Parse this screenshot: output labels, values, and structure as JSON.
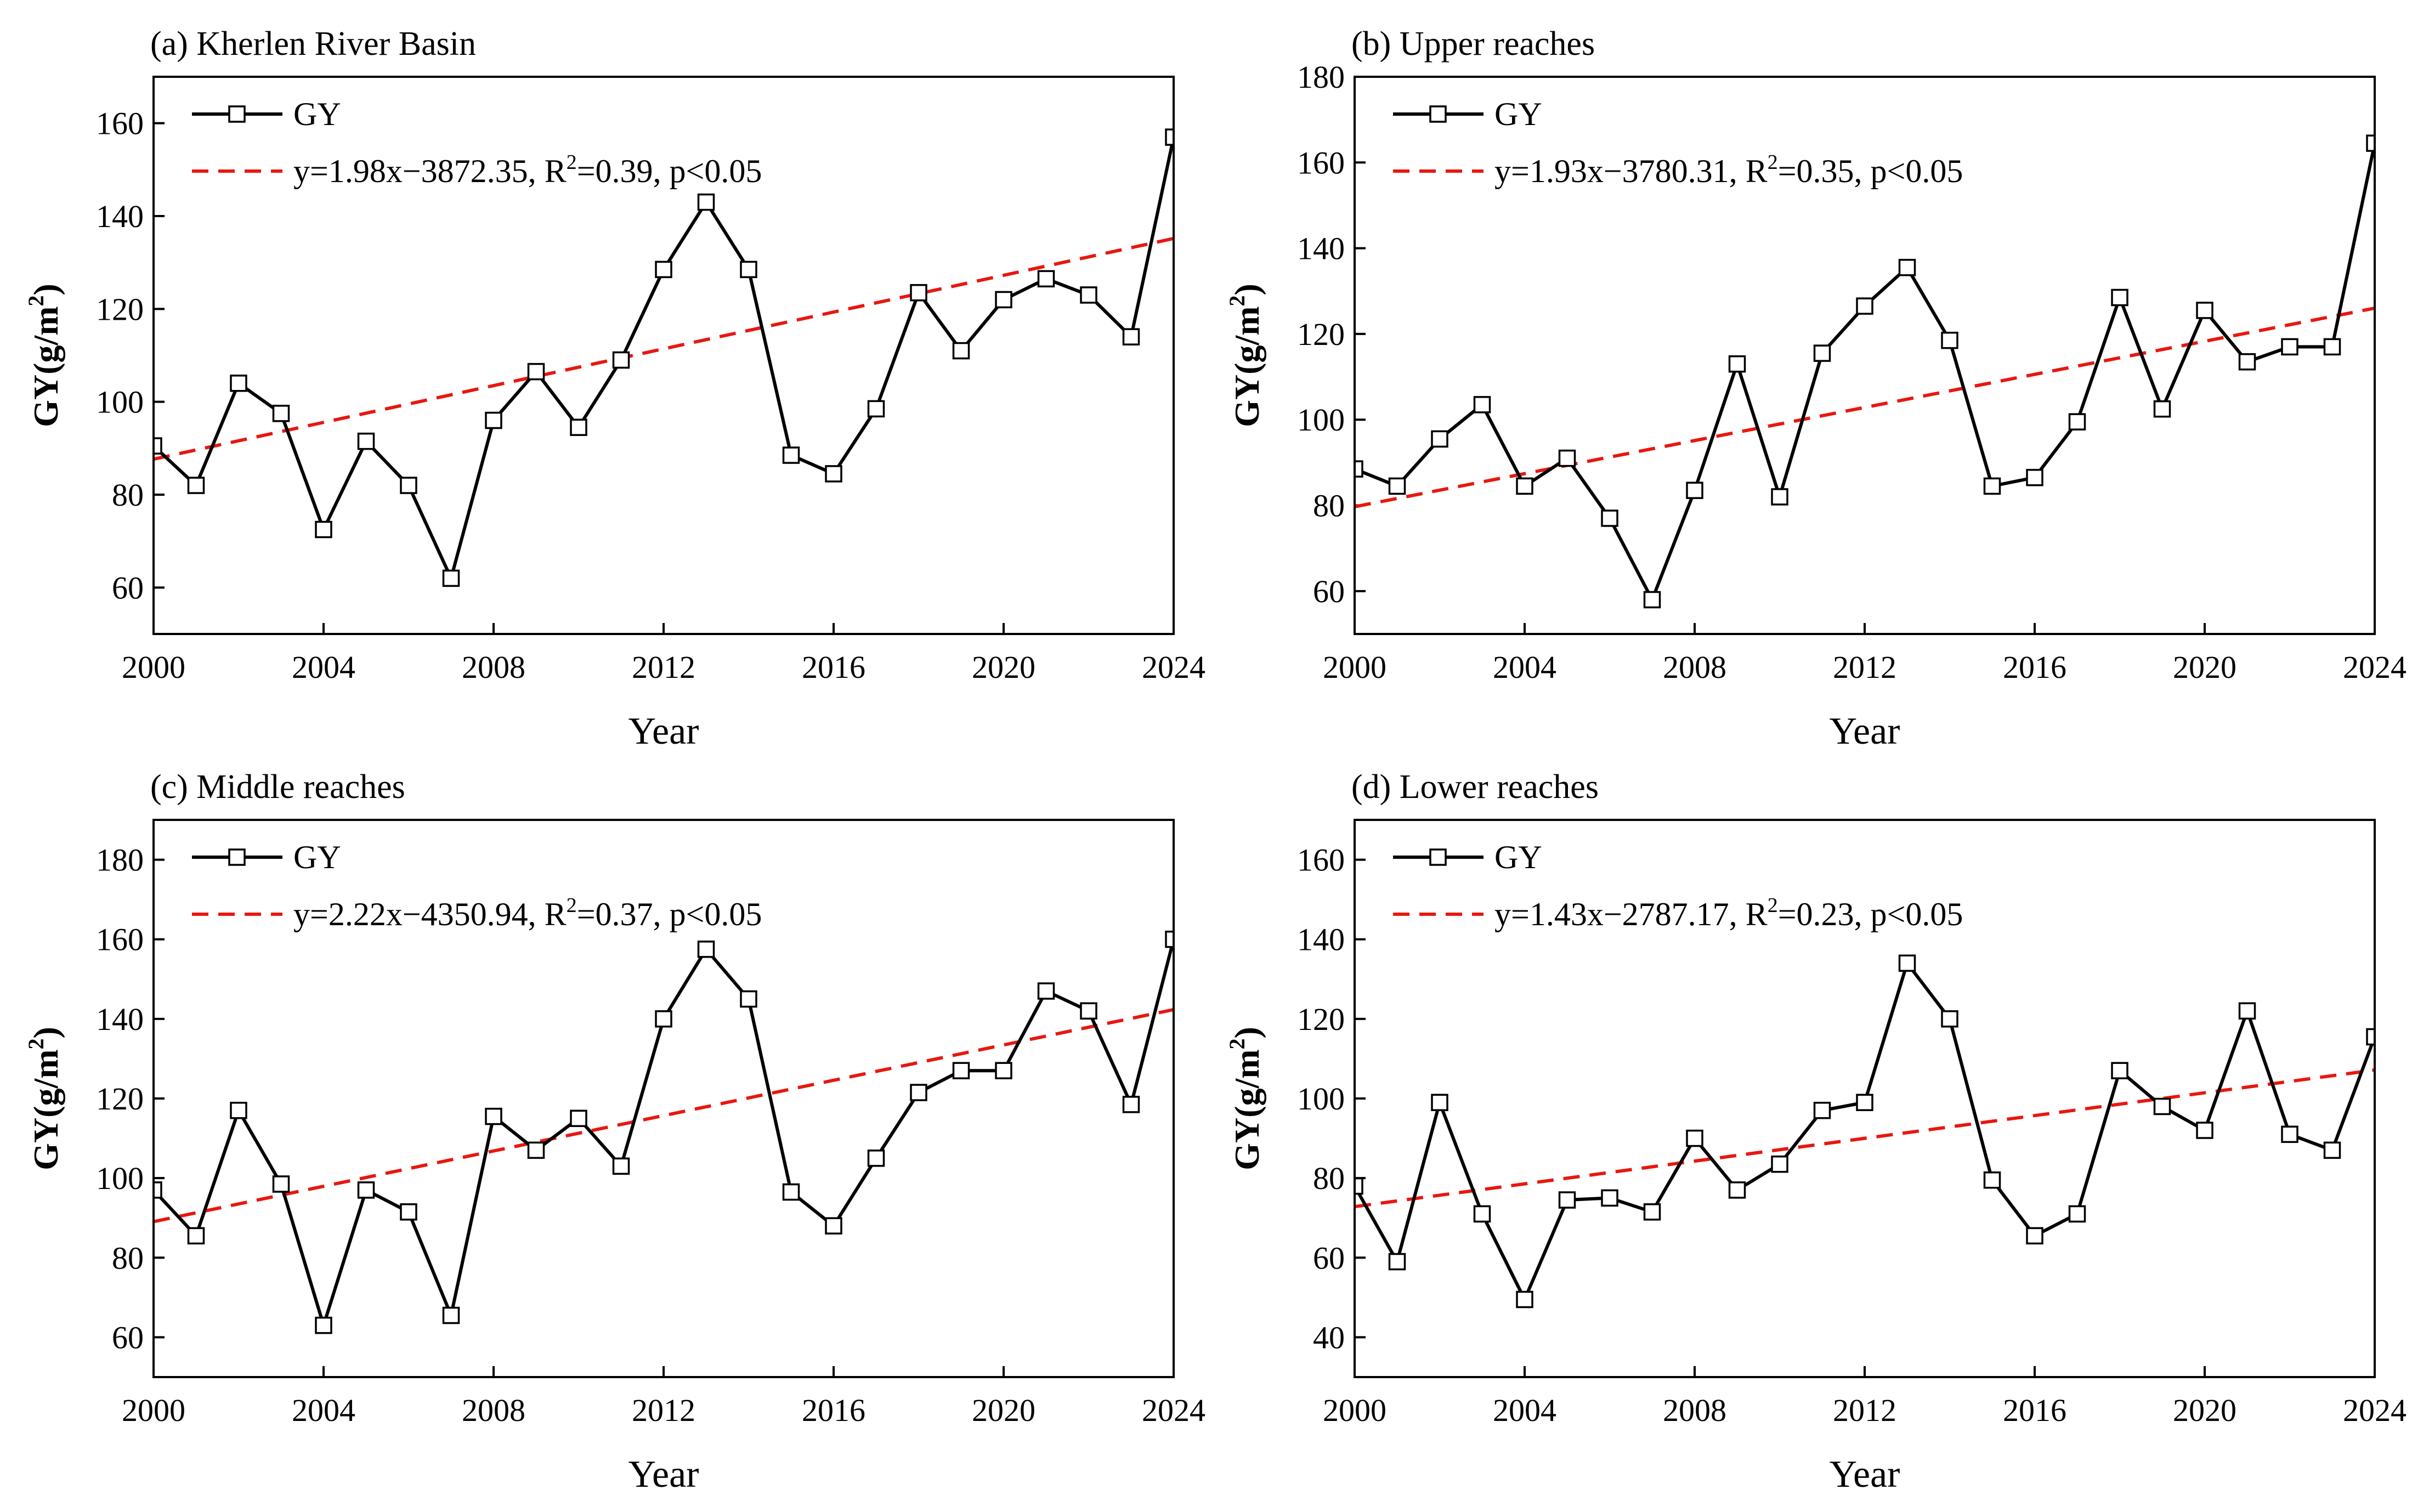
{
  "colors": {
    "series": "#000000",
    "trend": "#e8170f",
    "marker_fill": "#ffffff"
  },
  "chart_data": [
    {
      "type": "line",
      "title": "(a) Kherlen River Basin",
      "xlabel": "Year",
      "ylabel": "GY(g/m",
      "ylabel_sup": "2",
      "ylabel_end": ")",
      "xlim": [
        2000,
        2024
      ],
      "ylim": [
        50,
        170
      ],
      "xticks": [
        2000,
        2004,
        2008,
        2012,
        2016,
        2020,
        2024
      ],
      "yticks": [
        60,
        80,
        100,
        120,
        140,
        160
      ],
      "series_name": "GY",
      "x": [
        2000,
        2001,
        2002,
        2003,
        2004,
        2005,
        2006,
        2007,
        2008,
        2009,
        2010,
        2011,
        2012,
        2013,
        2014,
        2015,
        2016,
        2017,
        2018,
        2019,
        2020,
        2021,
        2022,
        2023,
        2024
      ],
      "values": [
        90.5,
        82,
        104,
        97.5,
        72.5,
        91.5,
        82,
        62,
        96,
        106.5,
        94.5,
        109,
        128.5,
        143,
        128.5,
        88.5,
        84.5,
        98.5,
        123.5,
        111,
        122,
        126.5,
        123,
        114,
        157
      ],
      "trend": {
        "slope": 1.98,
        "intercept": -3872.35,
        "label": "y=1.98x−3872.35, R",
        "r2_sup": "2",
        "label_end": "=0.39, p<0.05"
      }
    },
    {
      "type": "line",
      "title": "(b) Upper reaches",
      "xlabel": "Year",
      "ylabel": "GY(g/m",
      "ylabel_sup": "2",
      "ylabel_end": ")",
      "xlim": [
        2000,
        2024
      ],
      "ylim": [
        50,
        180
      ],
      "xticks": [
        2000,
        2004,
        2008,
        2012,
        2016,
        2020,
        2024
      ],
      "yticks": [
        60,
        80,
        100,
        120,
        140,
        160,
        180
      ],
      "series_name": "GY",
      "x": [
        2000,
        2001,
        2002,
        2003,
        2004,
        2005,
        2006,
        2007,
        2008,
        2009,
        2010,
        2011,
        2012,
        2013,
        2014,
        2015,
        2016,
        2017,
        2018,
        2019,
        2020,
        2021,
        2022,
        2023,
        2024
      ],
      "values": [
        88.5,
        84.5,
        95.5,
        103.5,
        84.5,
        91,
        77,
        58,
        83.5,
        113,
        82,
        115.5,
        126.5,
        135.5,
        118.5,
        84.5,
        86.5,
        99.5,
        128.5,
        102.5,
        125.5,
        113.5,
        117,
        117,
        164.5
      ],
      "trend": {
        "slope": 1.93,
        "intercept": -3780.31,
        "label": "y=1.93x−3780.31, R",
        "r2_sup": "2",
        "label_end": "=0.35, p<0.05"
      }
    },
    {
      "type": "line",
      "title": "(c) Middle reaches",
      "xlabel": "Year",
      "ylabel": "GY(g/m",
      "ylabel_sup": "2",
      "ylabel_end": ")",
      "xlim": [
        2000,
        2024
      ],
      "ylim": [
        50,
        190
      ],
      "xticks": [
        2000,
        2004,
        2008,
        2012,
        2016,
        2020,
        2024
      ],
      "yticks": [
        60,
        80,
        100,
        120,
        140,
        160,
        180
      ],
      "series_name": "GY",
      "x": [
        2000,
        2001,
        2002,
        2003,
        2004,
        2005,
        2006,
        2007,
        2008,
        2009,
        2010,
        2011,
        2012,
        2013,
        2014,
        2015,
        2016,
        2017,
        2018,
        2019,
        2020,
        2021,
        2022,
        2023,
        2024
      ],
      "values": [
        97,
        85.5,
        117,
        98.5,
        63,
        97,
        91.5,
        65.5,
        115.5,
        107,
        115,
        103,
        140,
        157.5,
        145,
        96.5,
        88,
        105,
        121.5,
        127,
        127,
        147,
        142,
        118.5,
        160
      ],
      "trend": {
        "slope": 2.22,
        "intercept": -4350.94,
        "label": "y=2.22x−4350.94, R",
        "r2_sup": "2",
        "label_end": "=0.37, p<0.05"
      }
    },
    {
      "type": "line",
      "title": "(d) Lower reaches",
      "xlabel": "Year",
      "ylabel": "GY(g/m",
      "ylabel_sup": "2",
      "ylabel_end": ")",
      "xlim": [
        2000,
        2024
      ],
      "ylim": [
        30,
        170
      ],
      "xticks": [
        2000,
        2004,
        2008,
        2012,
        2016,
        2020,
        2024
      ],
      "yticks": [
        40,
        60,
        80,
        100,
        120,
        140,
        160
      ],
      "series_name": "GY",
      "x": [
        2000,
        2001,
        2002,
        2003,
        2004,
        2005,
        2006,
        2007,
        2008,
        2009,
        2010,
        2011,
        2012,
        2013,
        2014,
        2015,
        2016,
        2017,
        2018,
        2019,
        2020,
        2021,
        2022,
        2023,
        2024
      ],
      "values": [
        78,
        59,
        99,
        71,
        49.5,
        74.5,
        75,
        71.5,
        90,
        77,
        83.5,
        97,
        99,
        134,
        120,
        79.5,
        65.5,
        71,
        107,
        98,
        92,
        122,
        91,
        87,
        115.5
      ],
      "trend": {
        "slope": 1.43,
        "intercept": -2787.17,
        "label": "y=1.43x−2787.17, R",
        "r2_sup": "2",
        "label_end": "=0.23, p<0.05"
      }
    }
  ]
}
